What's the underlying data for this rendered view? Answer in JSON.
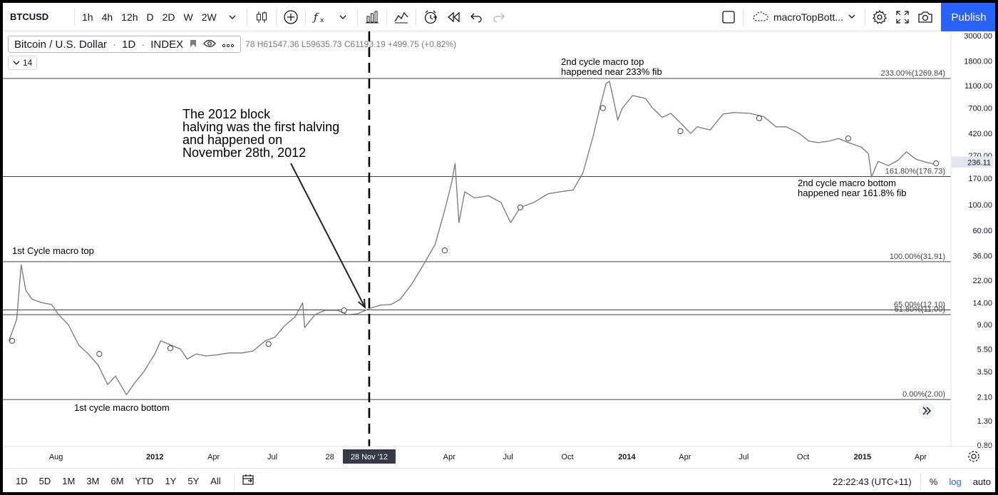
{
  "toolbar": {
    "symbol": "BTCUSD",
    "intervals": [
      "1h",
      "4h",
      "12h",
      "D",
      "2D",
      "W",
      "2W"
    ],
    "layout_name": "macroTopBott...",
    "publish_label": "Publish"
  },
  "legend": {
    "name": "Bitcoin / U.S. Dollar",
    "interval": "1D",
    "exchange": "INDEX",
    "ohlc": "78  H61547.36  L59635.73  C61193.19  +499.75 (+0.82%)",
    "indicator_count": "14"
  },
  "chart_data": {
    "type": "line",
    "title": "",
    "xlabel": "",
    "ylabel": "",
    "log_scale": true,
    "ylim": [
      0.8,
      3000
    ],
    "y_ticks": [
      "3000.00",
      "1800.00",
      "1100.00",
      "700.00",
      "420.00",
      "270.00",
      "170.00",
      "100.00",
      "60.00",
      "36.00",
      "22.00",
      "14.00",
      "9.00",
      "5.50",
      "3.50",
      "2.10",
      "1.30",
      "0.80"
    ],
    "x_ticks": [
      {
        "label": "Aug",
        "date": "2011-08-01"
      },
      {
        "label": "2012",
        "date": "2012-01-01"
      },
      {
        "label": "Apr",
        "date": "2012-04-01"
      },
      {
        "label": "Jul",
        "date": "2012-07-01"
      },
      {
        "label": "28",
        "date": "2012-09-28"
      },
      {
        "label": "Apr",
        "date": "2013-04-01"
      },
      {
        "label": "Jul",
        "date": "2013-07-01"
      },
      {
        "label": "Oct",
        "date": "2013-10-01"
      },
      {
        "label": "2014",
        "date": "2014-01-01"
      },
      {
        "label": "Apr",
        "date": "2014-04-01"
      },
      {
        "label": "Jul",
        "date": "2014-07-01"
      },
      {
        "label": "Oct",
        "date": "2014-10-01"
      },
      {
        "label": "2015",
        "date": "2015-01-01"
      },
      {
        "label": "Apr",
        "date": "2015-04-01"
      }
    ],
    "series": [
      {
        "values": [
          [
            "2011-05-20",
            6.5
          ],
          [
            "2011-06-01",
            10
          ],
          [
            "2011-06-08",
            30
          ],
          [
            "2011-06-15",
            18
          ],
          [
            "2011-06-25",
            15
          ],
          [
            "2011-07-10",
            14
          ],
          [
            "2011-07-25",
            13.5
          ],
          [
            "2011-08-05",
            11
          ],
          [
            "2011-08-20",
            9
          ],
          [
            "2011-09-05",
            6
          ],
          [
            "2011-09-20",
            5
          ],
          [
            "2011-10-05",
            4
          ],
          [
            "2011-10-20",
            2.7
          ],
          [
            "2011-11-01",
            3.2
          ],
          [
            "2011-11-18",
            2.2
          ],
          [
            "2011-12-01",
            2.8
          ],
          [
            "2011-12-15",
            3.5
          ],
          [
            "2012-01-01",
            5
          ],
          [
            "2012-01-10",
            6.5
          ],
          [
            "2012-01-25",
            6
          ],
          [
            "2012-02-10",
            5.5
          ],
          [
            "2012-02-20",
            4.5
          ],
          [
            "2012-03-05",
            5
          ],
          [
            "2012-03-20",
            4.8
          ],
          [
            "2012-04-05",
            4.9
          ],
          [
            "2012-04-25",
            5.1
          ],
          [
            "2012-05-15",
            5.1
          ],
          [
            "2012-06-01",
            5.3
          ],
          [
            "2012-06-20",
            6.5
          ],
          [
            "2012-07-05",
            7
          ],
          [
            "2012-07-20",
            8.8
          ],
          [
            "2012-08-05",
            10.5
          ],
          [
            "2012-08-17",
            14
          ],
          [
            "2012-08-20",
            8.5
          ],
          [
            "2012-09-05",
            11
          ],
          [
            "2012-09-20",
            12
          ],
          [
            "2012-10-10",
            12
          ],
          [
            "2012-10-25",
            11
          ],
          [
            "2012-11-10",
            11.2
          ],
          [
            "2012-11-28",
            12.4
          ],
          [
            "2012-12-15",
            13.3
          ],
          [
            "2013-01-01",
            13.5
          ],
          [
            "2013-01-15",
            15
          ],
          [
            "2013-02-01",
            20
          ],
          [
            "2013-02-20",
            30
          ],
          [
            "2013-03-10",
            45
          ],
          [
            "2013-03-25",
            90
          ],
          [
            "2013-04-05",
            160
          ],
          [
            "2013-04-10",
            230
          ],
          [
            "2013-04-16",
            70
          ],
          [
            "2013-04-25",
            130
          ],
          [
            "2013-05-10",
            115
          ],
          [
            "2013-06-01",
            120
          ],
          [
            "2013-06-20",
            105
          ],
          [
            "2013-07-05",
            70
          ],
          [
            "2013-07-20",
            95
          ],
          [
            "2013-08-10",
            105
          ],
          [
            "2013-09-01",
            125
          ],
          [
            "2013-09-20",
            130
          ],
          [
            "2013-10-10",
            135
          ],
          [
            "2013-10-25",
            190
          ],
          [
            "2013-11-10",
            400
          ],
          [
            "2013-11-20",
            700
          ],
          [
            "2013-11-30",
            1150
          ],
          [
            "2013-12-05",
            1200
          ],
          [
            "2013-12-10",
            900
          ],
          [
            "2013-12-18",
            550
          ],
          [
            "2013-12-25",
            700
          ],
          [
            "2014-01-10",
            900
          ],
          [
            "2014-01-30",
            850
          ],
          [
            "2014-02-10",
            700
          ],
          [
            "2014-02-25",
            580
          ],
          [
            "2014-03-10",
            630
          ],
          [
            "2014-03-25",
            520
          ],
          [
            "2014-04-10",
            420
          ],
          [
            "2014-04-20",
            480
          ],
          [
            "2014-05-10",
            450
          ],
          [
            "2014-05-30",
            620
          ],
          [
            "2014-06-15",
            640
          ],
          [
            "2014-07-10",
            630
          ],
          [
            "2014-08-01",
            590
          ],
          [
            "2014-08-20",
            480
          ],
          [
            "2014-09-05",
            480
          ],
          [
            "2014-09-25",
            420
          ],
          [
            "2014-10-10",
            360
          ],
          [
            "2014-10-25",
            350
          ],
          [
            "2014-11-10",
            360
          ],
          [
            "2014-11-25",
            380
          ],
          [
            "2014-12-10",
            350
          ],
          [
            "2014-12-30",
            320
          ],
          [
            "2015-01-10",
            280
          ],
          [
            "2015-01-15",
            175
          ],
          [
            "2015-01-25",
            240
          ],
          [
            "2015-02-10",
            220
          ],
          [
            "2015-02-25",
            245
          ],
          [
            "2015-03-10",
            290
          ],
          [
            "2015-03-25",
            250
          ],
          [
            "2015-04-10",
            235
          ],
          [
            "2015-04-25",
            225
          ]
        ]
      }
    ],
    "markers": [
      [
        "2011-05-25",
        6.5
      ],
      [
        "2011-10-07",
        5.0
      ],
      [
        "2012-01-25",
        5.6
      ],
      [
        "2012-06-25",
        6.1
      ],
      [
        "2012-10-20",
        12.0
      ],
      [
        "2013-03-25",
        40
      ],
      [
        "2013-07-20",
        95
      ],
      [
        "2013-11-25",
        700
      ],
      [
        "2014-03-25",
        440
      ],
      [
        "2014-07-25",
        570
      ],
      [
        "2014-12-10",
        380
      ],
      [
        "2015-04-25",
        230
      ]
    ],
    "fib_levels": [
      {
        "label": "233.00%(1269.84)",
        "value": 1269.84
      },
      {
        "label": "161.80%(176.73)",
        "value": 176.73
      },
      {
        "label": "100.00%(31.91)",
        "value": 31.91
      },
      {
        "label": "65.00%(12.10)",
        "value": 12.1
      },
      {
        "label": "61.80%(11.00)",
        "value": 11.0
      },
      {
        "label": "0.00%(2.00)",
        "value": 2.0
      }
    ],
    "last_price": {
      "label": "236.11",
      "value": 236.11
    },
    "crosshair": {
      "date": "2012-11-28",
      "label": "28 Nov '12"
    },
    "annotations": {
      "halving": "The 2012 block halving was the first halving and happened on November 28th, 2012",
      "second_top": "2nd cycle macro top happened near 233% fib",
      "second_bottom": "2nd cycle macro bottom happened near 161.8% fib",
      "first_top": "1st Cycle macro top",
      "first_bottom": "1st cycle macro bottom"
    },
    "colors": {
      "price": "#777777",
      "fib": "#444444",
      "last_price_bg": "#e3e6ee"
    }
  },
  "bottombar": {
    "ranges": [
      "1D",
      "5D",
      "1M",
      "3M",
      "6M",
      "YTD",
      "1Y",
      "5Y",
      "All"
    ],
    "time": "22:22:43 (UTC+11)",
    "percent_label": "%",
    "log_label": "log",
    "auto_label": "auto"
  }
}
